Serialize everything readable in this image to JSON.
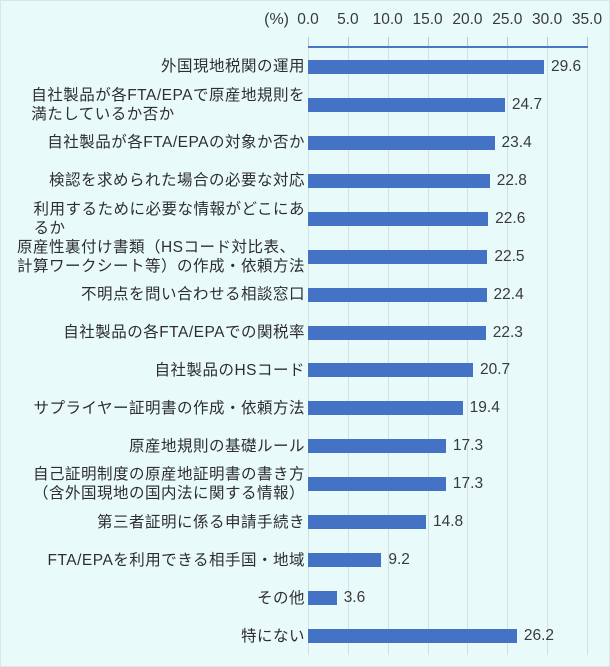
{
  "chart_data": {
    "type": "bar",
    "orientation": "horizontal",
    "title": "",
    "unit_label": "(%)",
    "categories": [
      "外国現地税関の運用",
      "自社製品が各FTA/EPAで原産地規則を\n満たしているか否か",
      "自社製品が各FTA/EPAの対象か否か",
      "検認を求められた場合の必要な対応",
      "利用するために必要な情報がどこにあ\nるか",
      "原産性裏付け書類（HSコード対比表、\n計算ワークシート等）の作成・依頼方法",
      "不明点を問い合わせる相談窓口",
      "自社製品の各FTA/EPAでの関税率",
      "自社製品のHSコード",
      "サプライヤー証明書の作成・依頼方法",
      "原産地規則の基礎ルール",
      "自己証明制度の原産地証明書の書き方\n（含外国現地の国内法に関する情報）",
      "第三者証明に係る申請手続き",
      "FTA/EPAを利用できる相手国・地域",
      "その他",
      "特にない"
    ],
    "values": [
      29.6,
      24.7,
      23.4,
      22.8,
      22.6,
      22.5,
      22.4,
      22.3,
      20.7,
      19.4,
      17.3,
      17.3,
      14.8,
      9.2,
      3.6,
      26.2
    ],
    "value_decimals": 1,
    "xlim": [
      0,
      35
    ],
    "xticks": [
      0,
      5,
      10,
      15,
      20,
      25,
      30,
      35
    ],
    "xtick_labels": [
      "0.0",
      "5.0",
      "10.0",
      "15.0",
      "20.0",
      "25.0",
      "30.0",
      "35.0"
    ],
    "grid": "vertical",
    "legend": "none",
    "colors": {
      "bar": "#4472C4",
      "background": "#E9FAFB",
      "gridline": "#d4e0e2",
      "axis_line": "#4A74C5",
      "text": "#3a3a3a"
    }
  }
}
